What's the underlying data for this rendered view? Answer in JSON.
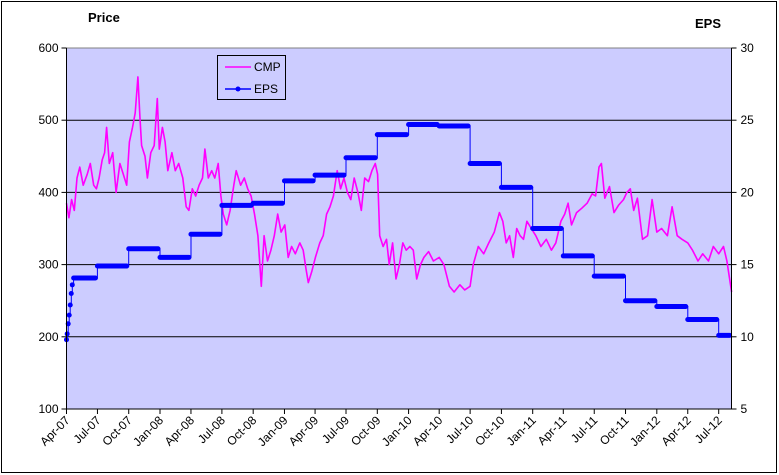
{
  "chart_data": {
    "type": "line",
    "y_left_title": "Price",
    "y_right_title": "EPS",
    "ylim_left": [
      100,
      600
    ],
    "ylim_right": [
      5,
      30
    ],
    "yticks_left": [
      "100",
      "200",
      "300",
      "400",
      "500",
      "600"
    ],
    "yticks_right": [
      "5",
      "10",
      "15",
      "20",
      "25",
      "30"
    ],
    "xticks": [
      {
        "date": "2007-04-01",
        "label": "Apr-07"
      },
      {
        "date": "2007-07-01",
        "label": "Jul-07"
      },
      {
        "date": "2007-10-01",
        "label": "Oct-07"
      },
      {
        "date": "2008-01-01",
        "label": "Jan-08"
      },
      {
        "date": "2008-04-01",
        "label": "Apr-08"
      },
      {
        "date": "2008-07-01",
        "label": "Jul-08"
      },
      {
        "date": "2008-10-01",
        "label": "Oct-08"
      },
      {
        "date": "2009-01-01",
        "label": "Jan-09"
      },
      {
        "date": "2009-04-01",
        "label": "Apr-09"
      },
      {
        "date": "2009-07-01",
        "label": "Jul-09"
      },
      {
        "date": "2009-10-01",
        "label": "Oct-09"
      },
      {
        "date": "2010-01-01",
        "label": "Jan-10"
      },
      {
        "date": "2010-04-01",
        "label": "Apr-10"
      },
      {
        "date": "2010-07-01",
        "label": "Jul-10"
      },
      {
        "date": "2010-10-01",
        "label": "Oct-10"
      },
      {
        "date": "2011-01-01",
        "label": "Jan-11"
      },
      {
        "date": "2011-04-01",
        "label": "Apr-11"
      },
      {
        "date": "2011-07-01",
        "label": "Jul-11"
      },
      {
        "date": "2011-10-01",
        "label": "Oct-11"
      },
      {
        "date": "2012-01-01",
        "label": "Jan-12"
      },
      {
        "date": "2012-04-01",
        "label": "Apr-12"
      },
      {
        "date": "2012-07-01",
        "label": "Jul-12"
      }
    ],
    "grid": "horizontal major gridlines",
    "plot_background": "#ccccff",
    "legend": {
      "placement": "top-left inside plot",
      "entries": [
        "CMP",
        "EPS"
      ]
    },
    "series": [
      {
        "name": "CMP",
        "axis": "left",
        "color": "#ff00ff",
        "points": [
          [
            "2007-04-01",
            385
          ],
          [
            "2007-04-08",
            365
          ],
          [
            "2007-04-16",
            390
          ],
          [
            "2007-04-24",
            375
          ],
          [
            "2007-05-02",
            420
          ],
          [
            "2007-05-10",
            435
          ],
          [
            "2007-05-20",
            410
          ],
          [
            "2007-06-01",
            425
          ],
          [
            "2007-06-10",
            440
          ],
          [
            "2007-06-20",
            410
          ],
          [
            "2007-06-28",
            405
          ],
          [
            "2007-07-06",
            420
          ],
          [
            "2007-07-15",
            445
          ],
          [
            "2007-07-22",
            455
          ],
          [
            "2007-07-28",
            490
          ],
          [
            "2007-08-05",
            440
          ],
          [
            "2007-08-15",
            455
          ],
          [
            "2007-08-25",
            400
          ],
          [
            "2007-09-05",
            440
          ],
          [
            "2007-09-15",
            425
          ],
          [
            "2007-09-25",
            410
          ],
          [
            "2007-10-03",
            470
          ],
          [
            "2007-10-12",
            490
          ],
          [
            "2007-10-20",
            510
          ],
          [
            "2007-10-28",
            560
          ],
          [
            "2007-11-03",
            505
          ],
          [
            "2007-11-08",
            465
          ],
          [
            "2007-11-18",
            450
          ],
          [
            "2007-11-25",
            420
          ],
          [
            "2007-12-05",
            455
          ],
          [
            "2007-12-15",
            465
          ],
          [
            "2007-12-24",
            530
          ],
          [
            "2007-12-30",
            460
          ],
          [
            "2008-01-08",
            490
          ],
          [
            "2008-01-16",
            470
          ],
          [
            "2008-01-24",
            430
          ],
          [
            "2008-02-05",
            455
          ],
          [
            "2008-02-15",
            430
          ],
          [
            "2008-02-25",
            440
          ],
          [
            "2008-03-08",
            420
          ],
          [
            "2008-03-18",
            380
          ],
          [
            "2008-03-26",
            375
          ],
          [
            "2008-04-05",
            405
          ],
          [
            "2008-04-15",
            395
          ],
          [
            "2008-04-25",
            410
          ],
          [
            "2008-05-05",
            420
          ],
          [
            "2008-05-12",
            460
          ],
          [
            "2008-05-22",
            420
          ],
          [
            "2008-06-01",
            430
          ],
          [
            "2008-06-10",
            420
          ],
          [
            "2008-06-20",
            440
          ],
          [
            "2008-06-28",
            395
          ],
          [
            "2008-07-05",
            370
          ],
          [
            "2008-07-15",
            355
          ],
          [
            "2008-07-25",
            375
          ],
          [
            "2008-08-05",
            410
          ],
          [
            "2008-08-12",
            430
          ],
          [
            "2008-08-25",
            410
          ],
          [
            "2008-09-05",
            420
          ],
          [
            "2008-09-15",
            405
          ],
          [
            "2008-09-25",
            395
          ],
          [
            "2008-10-05",
            370
          ],
          [
            "2008-10-15",
            340
          ],
          [
            "2008-10-25",
            270
          ],
          [
            "2008-11-02",
            340
          ],
          [
            "2008-11-12",
            305
          ],
          [
            "2008-11-22",
            320
          ],
          [
            "2008-12-02",
            340
          ],
          [
            "2008-12-12",
            370
          ],
          [
            "2008-12-22",
            345
          ],
          [
            "2009-01-02",
            355
          ],
          [
            "2009-01-12",
            310
          ],
          [
            "2009-01-22",
            325
          ],
          [
            "2009-02-02",
            315
          ],
          [
            "2009-02-15",
            330
          ],
          [
            "2009-02-25",
            320
          ],
          [
            "2009-03-05",
            295
          ],
          [
            "2009-03-12",
            275
          ],
          [
            "2009-03-22",
            290
          ],
          [
            "2009-04-02",
            310
          ],
          [
            "2009-04-15",
            330
          ],
          [
            "2009-04-25",
            340
          ],
          [
            "2009-05-05",
            370
          ],
          [
            "2009-05-15",
            380
          ],
          [
            "2009-05-25",
            395
          ],
          [
            "2009-06-05",
            430
          ],
          [
            "2009-06-15",
            405
          ],
          [
            "2009-06-25",
            420
          ],
          [
            "2009-07-05",
            400
          ],
          [
            "2009-07-15",
            390
          ],
          [
            "2009-07-25",
            420
          ],
          [
            "2009-08-05",
            400
          ],
          [
            "2009-08-15",
            375
          ],
          [
            "2009-08-25",
            420
          ],
          [
            "2009-09-05",
            415
          ],
          [
            "2009-09-15",
            430
          ],
          [
            "2009-09-25",
            440
          ],
          [
            "2009-10-02",
            425
          ],
          [
            "2009-10-08",
            340
          ],
          [
            "2009-10-18",
            325
          ],
          [
            "2009-10-28",
            335
          ],
          [
            "2009-11-05",
            300
          ],
          [
            "2009-11-15",
            330
          ],
          [
            "2009-11-25",
            280
          ],
          [
            "2009-12-05",
            300
          ],
          [
            "2009-12-15",
            330
          ],
          [
            "2009-12-25",
            320
          ],
          [
            "2010-01-05",
            325
          ],
          [
            "2010-01-15",
            320
          ],
          [
            "2010-01-25",
            280
          ],
          [
            "2010-02-05",
            300
          ],
          [
            "2010-02-15",
            310
          ],
          [
            "2010-03-01",
            318
          ],
          [
            "2010-03-15",
            305
          ],
          [
            "2010-04-01",
            310
          ],
          [
            "2010-04-15",
            300
          ],
          [
            "2010-05-01",
            270
          ],
          [
            "2010-05-15",
            262
          ],
          [
            "2010-06-01",
            272
          ],
          [
            "2010-06-15",
            265
          ],
          [
            "2010-07-01",
            270
          ],
          [
            "2010-07-10",
            300
          ],
          [
            "2010-07-25",
            325
          ],
          [
            "2010-08-10",
            315
          ],
          [
            "2010-08-25",
            330
          ],
          [
            "2010-09-10",
            345
          ],
          [
            "2010-09-25",
            372
          ],
          [
            "2010-10-05",
            360
          ],
          [
            "2010-10-15",
            330
          ],
          [
            "2010-10-25",
            340
          ],
          [
            "2010-11-05",
            310
          ],
          [
            "2010-11-15",
            350
          ],
          [
            "2010-11-25",
            340
          ],
          [
            "2010-12-05",
            335
          ],
          [
            "2010-12-15",
            360
          ],
          [
            "2010-12-28",
            350
          ],
          [
            "2011-01-10",
            340
          ],
          [
            "2011-01-25",
            325
          ],
          [
            "2011-02-10",
            335
          ],
          [
            "2011-02-25",
            320
          ],
          [
            "2011-03-10",
            330
          ],
          [
            "2011-03-25",
            360
          ],
          [
            "2011-04-05",
            370
          ],
          [
            "2011-04-15",
            385
          ],
          [
            "2011-04-25",
            355
          ],
          [
            "2011-05-10",
            372
          ],
          [
            "2011-05-25",
            378
          ],
          [
            "2011-06-10",
            385
          ],
          [
            "2011-06-25",
            398
          ],
          [
            "2011-07-05",
            395
          ],
          [
            "2011-07-15",
            435
          ],
          [
            "2011-07-22",
            440
          ],
          [
            "2011-08-01",
            392
          ],
          [
            "2011-08-15",
            408
          ],
          [
            "2011-08-28",
            372
          ],
          [
            "2011-09-10",
            382
          ],
          [
            "2011-09-25",
            390
          ],
          [
            "2011-10-05",
            400
          ],
          [
            "2011-10-15",
            405
          ],
          [
            "2011-10-25",
            375
          ],
          [
            "2011-11-05",
            392
          ],
          [
            "2011-11-20",
            335
          ],
          [
            "2011-12-05",
            340
          ],
          [
            "2011-12-18",
            390
          ],
          [
            "2012-01-01",
            345
          ],
          [
            "2012-01-15",
            350
          ],
          [
            "2012-02-01",
            340
          ],
          [
            "2012-02-15",
            380
          ],
          [
            "2012-03-01",
            340
          ],
          [
            "2012-03-15",
            335
          ],
          [
            "2012-04-01",
            330
          ],
          [
            "2012-04-15",
            320
          ],
          [
            "2012-05-01",
            305
          ],
          [
            "2012-05-15",
            315
          ],
          [
            "2012-06-01",
            305
          ],
          [
            "2012-06-15",
            325
          ],
          [
            "2012-07-01",
            315
          ],
          [
            "2012-07-15",
            325
          ],
          [
            "2012-07-25",
            305
          ],
          [
            "2012-08-08",
            262
          ]
        ]
      },
      {
        "name": "EPS",
        "axis": "right",
        "color": "#0000ff",
        "steps": [
          [
            "2007-04-01",
            9.8
          ],
          [
            "2007-04-03",
            10.2
          ],
          [
            "2007-04-06",
            10.9
          ],
          [
            "2007-04-09",
            11.5
          ],
          [
            "2007-04-12",
            12.2
          ],
          [
            "2007-04-15",
            13.0
          ],
          [
            "2007-04-18",
            13.6
          ],
          [
            "2007-04-22",
            14.07
          ],
          [
            "2007-07-01",
            14.9
          ],
          [
            "2007-10-01",
            16.1
          ],
          [
            "2008-01-01",
            15.5
          ],
          [
            "2008-04-01",
            17.1
          ],
          [
            "2008-07-01",
            19.1
          ],
          [
            "2008-10-01",
            19.25
          ],
          [
            "2009-01-01",
            20.8
          ],
          [
            "2009-04-01",
            21.2
          ],
          [
            "2009-07-01",
            22.4
          ],
          [
            "2009-10-01",
            24.0
          ],
          [
            "2010-01-01",
            24.7
          ],
          [
            "2010-04-01",
            24.6
          ],
          [
            "2010-07-01",
            22.0
          ],
          [
            "2010-10-01",
            20.35
          ],
          [
            "2011-01-01",
            17.5
          ],
          [
            "2011-04-01",
            15.6
          ],
          [
            "2011-07-01",
            14.2
          ],
          [
            "2011-10-01",
            12.5
          ],
          [
            "2012-01-01",
            12.1
          ],
          [
            "2012-04-01",
            11.2
          ],
          [
            "2012-07-01",
            10.1
          ]
        ],
        "end": "2012-08-08"
      }
    ]
  }
}
